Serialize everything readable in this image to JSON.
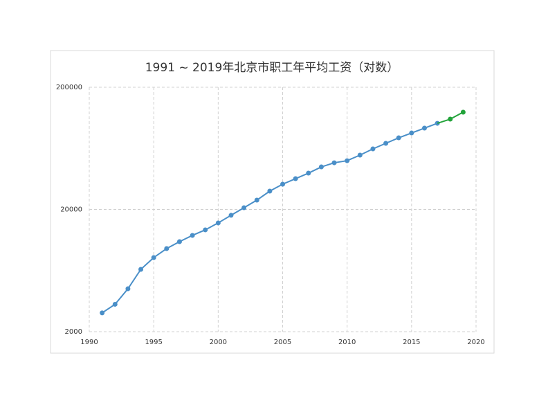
{
  "chart_data": {
    "type": "line",
    "title": "1991 ~ 2019年北京市职工年平均工资（对数）",
    "x": [
      1991,
      1992,
      1993,
      1994,
      1995,
      1996,
      1997,
      1998,
      1999,
      2000,
      2001,
      2002,
      2003,
      2004,
      2005,
      2006,
      2007,
      2008,
      2009,
      2010,
      2011,
      2012,
      2013,
      2014,
      2015,
      2016,
      2017,
      2018,
      2019
    ],
    "series": [
      {
        "color": "#4a8fc8",
        "values": [
          2850,
          3350,
          4490,
          6470,
          8080,
          9570,
          10900,
          12270,
          13620,
          15520,
          17920,
          20660,
          23840,
          28250,
          32200,
          35730,
          39640,
          44580,
          48200,
          50130,
          55700,
          62630,
          69510,
          77120,
          84500,
          92600,
          101400,
          null,
          null
        ]
      },
      {
        "color": "#22a33a",
        "values": [
          null,
          null,
          null,
          null,
          null,
          null,
          null,
          null,
          null,
          null,
          null,
          null,
          null,
          null,
          null,
          null,
          null,
          null,
          null,
          null,
          null,
          null,
          null,
          null,
          null,
          null,
          null,
          109700,
          125000
        ]
      }
    ],
    "xlim": [
      1990,
      2020
    ],
    "xticks": [
      1990,
      1995,
      2000,
      2005,
      2010,
      2015,
      2020
    ],
    "ylim": [
      2000,
      200000
    ],
    "yticks": [
      2000,
      20000,
      200000
    ],
    "log_y": true,
    "grid": true
  }
}
